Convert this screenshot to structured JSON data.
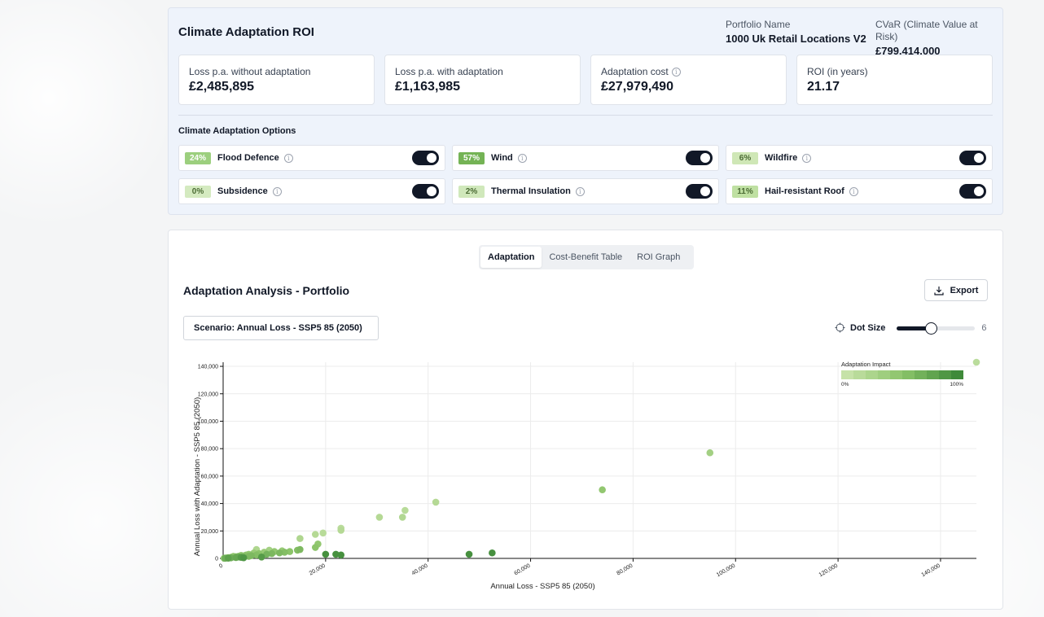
{
  "roi": {
    "title": "Climate Adaptation ROI",
    "portfolio_label": "Portfolio Name",
    "portfolio_value": "1000 Uk Retail Locations V2",
    "cvar_label": "CVaR (Climate Value at Risk)",
    "cvar_value": "£799,414,000",
    "kpis": [
      {
        "label": "Loss p.a. without adaptation",
        "value": "£2,485,895",
        "info": false
      },
      {
        "label": "Loss p.a. with adaptation",
        "value": "£1,163,985",
        "info": false
      },
      {
        "label": "Adaptation cost",
        "value": "£27,979,490",
        "info": true
      },
      {
        "label": "ROI (in years)",
        "value": "21.17",
        "info": false
      }
    ],
    "options_title": "Climate Adaptation Options",
    "options": [
      {
        "pct": "24%",
        "label": "Flood Defence",
        "enabled": true
      },
      {
        "pct": "57%",
        "label": "Wind",
        "enabled": true
      },
      {
        "pct": "6%",
        "label": "Wildfire",
        "enabled": true
      },
      {
        "pct": "0%",
        "label": "Subsidence",
        "enabled": true
      },
      {
        "pct": "2%",
        "label": "Thermal Insulation",
        "enabled": true
      },
      {
        "pct": "11%",
        "label": "Hail-resistant Roof",
        "enabled": true
      }
    ]
  },
  "analysis": {
    "tabs": [
      "Adaptation",
      "Cost-Benefit Table",
      "ROI Graph"
    ],
    "active_tab": 0,
    "title": "Adaptation Analysis - Portfolio",
    "export_label": "Export",
    "scenario": "Scenario: Annual Loss - SSP5 85 (2050)",
    "dot_size_label": "Dot Size",
    "dot_size_value": "6",
    "dot_size_fraction": 0.43
  },
  "colors": {
    "impact_low": "#c6e2a8",
    "impact_mid": "#8cc46a",
    "impact_high": "#3f8a3a"
  },
  "chart_data": {
    "type": "scatter",
    "xlabel": "Annual Loss - SSP5 85 (2050)",
    "ylabel": "Annual Loss with Adaptation - SSP5 85 (2050)",
    "xlim": [
      0,
      147000
    ],
    "ylim": [
      0,
      143000
    ],
    "xticks": [
      0,
      20000,
      40000,
      60000,
      80000,
      100000,
      120000,
      140000
    ],
    "xtick_labels": [
      "0",
      "20,000",
      "40,000",
      "60,000",
      "80,000",
      "100,000",
      "120,000",
      "140,000"
    ],
    "yticks": [
      0,
      20000,
      40000,
      60000,
      80000,
      100000,
      120000,
      140000
    ],
    "ytick_labels": [
      "0",
      "20,000",
      "40,000",
      "60,000",
      "80,000",
      "100,000",
      "120,000",
      "140,000"
    ],
    "grid": true,
    "legend": {
      "title": "Adaptation Impact",
      "min_label": "0%",
      "max_label": "100%",
      "placement": "top-right"
    },
    "points": [
      {
        "x": 147000,
        "y": 143000,
        "impact": 0.1
      },
      {
        "x": 95000,
        "y": 77000,
        "impact": 0.3
      },
      {
        "x": 74000,
        "y": 50000,
        "impact": 0.45
      },
      {
        "x": 41500,
        "y": 41000,
        "impact": 0.15
      },
      {
        "x": 35500,
        "y": 35000,
        "impact": 0.12
      },
      {
        "x": 35000,
        "y": 30000,
        "impact": 0.18
      },
      {
        "x": 30500,
        "y": 30000,
        "impact": 0.15
      },
      {
        "x": 23000,
        "y": 22000,
        "impact": 0.1
      },
      {
        "x": 23000,
        "y": 20500,
        "impact": 0.15
      },
      {
        "x": 19500,
        "y": 18500,
        "impact": 0.12
      },
      {
        "x": 18000,
        "y": 17500,
        "impact": 0.15
      },
      {
        "x": 15000,
        "y": 14500,
        "impact": 0.2
      },
      {
        "x": 18500,
        "y": 10500,
        "impact": 0.45
      },
      {
        "x": 18000,
        "y": 8000,
        "impact": 0.5
      },
      {
        "x": 52500,
        "y": 4000,
        "impact": 0.95
      },
      {
        "x": 48000,
        "y": 3000,
        "impact": 0.95
      },
      {
        "x": 23000,
        "y": 2500,
        "impact": 0.95
      },
      {
        "x": 22000,
        "y": 3000,
        "impact": 0.95
      },
      {
        "x": 20000,
        "y": 3000,
        "impact": 0.95
      },
      {
        "x": 15000,
        "y": 6500,
        "impact": 0.6
      },
      {
        "x": 14500,
        "y": 6000,
        "impact": 0.55
      },
      {
        "x": 13000,
        "y": 5000,
        "impact": 0.5
      },
      {
        "x": 12000,
        "y": 4500,
        "impact": 0.55
      },
      {
        "x": 11500,
        "y": 5500,
        "impact": 0.4
      },
      {
        "x": 11000,
        "y": 4000,
        "impact": 0.6
      },
      {
        "x": 10000,
        "y": 5000,
        "impact": 0.45
      },
      {
        "x": 9500,
        "y": 3500,
        "impact": 0.6
      },
      {
        "x": 9000,
        "y": 6000,
        "impact": 0.3
      },
      {
        "x": 8500,
        "y": 3000,
        "impact": 0.65
      },
      {
        "x": 8000,
        "y": 4500,
        "impact": 0.4
      },
      {
        "x": 7500,
        "y": 1000,
        "impact": 0.85
      },
      {
        "x": 7000,
        "y": 3500,
        "impact": 0.5
      },
      {
        "x": 6500,
        "y": 2500,
        "impact": 0.55
      },
      {
        "x": 6500,
        "y": 6500,
        "impact": 0.2
      },
      {
        "x": 6000,
        "y": 4000,
        "impact": 0.4
      },
      {
        "x": 5500,
        "y": 2000,
        "impact": 0.6
      },
      {
        "x": 5000,
        "y": 3000,
        "impact": 0.45
      },
      {
        "x": 5000,
        "y": 1500,
        "impact": 0.6
      },
      {
        "x": 4500,
        "y": 2500,
        "impact": 0.5
      },
      {
        "x": 4000,
        "y": 1800,
        "impact": 0.55
      },
      {
        "x": 4000,
        "y": 500,
        "impact": 0.9
      },
      {
        "x": 3500,
        "y": 2200,
        "impact": 0.45
      },
      {
        "x": 3500,
        "y": 800,
        "impact": 0.85
      },
      {
        "x": 3000,
        "y": 1500,
        "impact": 0.5
      },
      {
        "x": 3000,
        "y": 1000,
        "impact": 0.7
      },
      {
        "x": 2500,
        "y": 1200,
        "impact": 0.55
      },
      {
        "x": 2500,
        "y": 600,
        "impact": 0.75
      },
      {
        "x": 2000,
        "y": 1000,
        "impact": 0.5
      },
      {
        "x": 2000,
        "y": 1500,
        "impact": 0.35
      },
      {
        "x": 1500,
        "y": 800,
        "impact": 0.45
      },
      {
        "x": 1500,
        "y": 400,
        "impact": 0.7
      },
      {
        "x": 1000,
        "y": 600,
        "impact": 0.4
      },
      {
        "x": 1000,
        "y": 200,
        "impact": 0.8
      },
      {
        "x": 800,
        "y": 400,
        "impact": 0.5
      },
      {
        "x": 500,
        "y": 300,
        "impact": 0.4
      },
      {
        "x": 400,
        "y": 100,
        "impact": 0.7
      },
      {
        "x": 300,
        "y": 200,
        "impact": 0.35
      },
      {
        "x": 200,
        "y": 100,
        "impact": 0.5
      }
    ]
  }
}
